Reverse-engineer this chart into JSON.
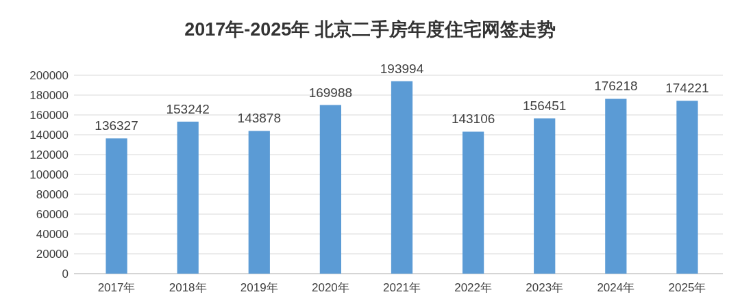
{
  "chart_data": {
    "type": "bar",
    "title": "2017年-2025年 北京二手房年度住宅网签走势",
    "categories": [
      "2017年",
      "2018年",
      "2019年",
      "2020年",
      "2021年",
      "2022年",
      "2023年",
      "2024年",
      "2025年"
    ],
    "values": [
      136327,
      153242,
      143878,
      169988,
      193994,
      143106,
      156451,
      176218,
      174221
    ],
    "color": "#5b9bd5",
    "ylim": [
      0,
      200000
    ],
    "yticks": [
      0,
      20000,
      40000,
      60000,
      80000,
      100000,
      120000,
      140000,
      160000,
      180000,
      200000
    ],
    "grid": "y",
    "data_labels": true
  }
}
